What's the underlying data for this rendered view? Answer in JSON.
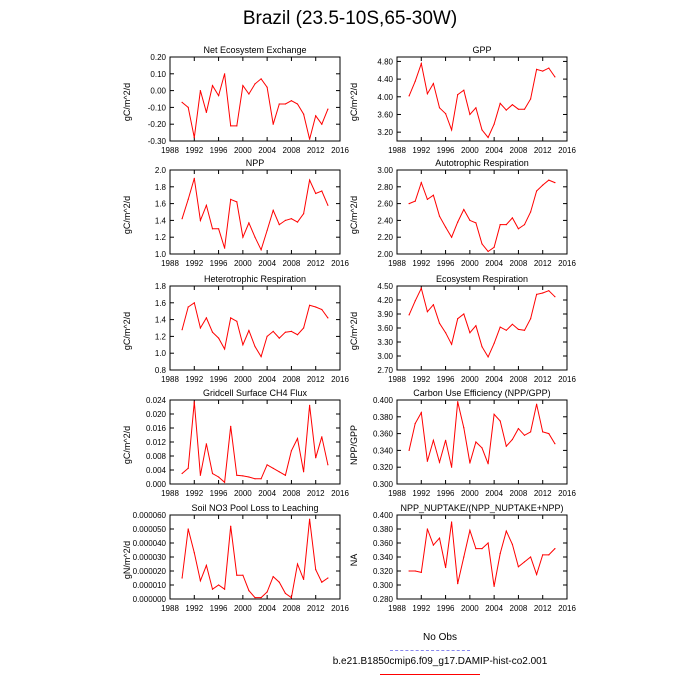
{
  "title": "Brazil (23.5-10S,65-30W)",
  "legend": {
    "items": [
      {
        "label": "No Obs",
        "color": "#8888ee",
        "style": "dashed"
      },
      {
        "label": "b.e21.B1850cmip6.f09_g17.DAMIP-hist-co2.001",
        "color": "#ff0000",
        "style": "solid"
      }
    ]
  },
  "colors": {
    "series": "#ff0000"
  },
  "chart_data": [
    {
      "type": "line",
      "title": "Net Ecosystem Exchange",
      "ylabel": "gC/m^2/d",
      "xlim": [
        1988,
        2016
      ],
      "xticks": [
        1988,
        1992,
        1996,
        2000,
        2004,
        2008,
        2012,
        2016
      ],
      "ylim": [
        -0.3,
        0.2
      ],
      "yticks": [
        -0.3,
        -0.2,
        -0.1,
        0.0,
        0.1,
        0.2
      ],
      "ytick_labels": [
        "-0.30",
        "-0.20",
        "-0.10",
        "0.00",
        "0.10",
        "0.20"
      ],
      "x": [
        1990,
        1991,
        1992,
        1993,
        1994,
        1995,
        1996,
        1997,
        1998,
        1999,
        2000,
        2001,
        2002,
        2003,
        2004,
        2005,
        2006,
        2007,
        2008,
        2009,
        2010,
        2011,
        2012,
        2013,
        2014
      ],
      "values": [
        -0.07,
        -0.1,
        -0.28,
        0.0,
        -0.13,
        0.03,
        -0.03,
        0.1,
        -0.21,
        -0.21,
        0.03,
        -0.02,
        0.04,
        0.07,
        0.02,
        -0.2,
        -0.08,
        -0.08,
        -0.06,
        -0.08,
        -0.14,
        -0.29,
        -0.15,
        -0.2,
        -0.11
      ]
    },
    {
      "type": "line",
      "title": "GPP",
      "ylabel": "gC/m^2/d",
      "xlim": [
        1988,
        2016
      ],
      "xticks": [
        1988,
        1992,
        1996,
        2000,
        2004,
        2008,
        2012,
        2016
      ],
      "ylim": [
        3.0,
        4.9
      ],
      "yticks": [
        3.2,
        3.6,
        4.0,
        4.4,
        4.8
      ],
      "ytick_labels": [
        "3.20",
        "3.60",
        "4.00",
        "4.40",
        "4.80"
      ],
      "x": [
        1990,
        1991,
        1992,
        1993,
        1994,
        1995,
        1996,
        1997,
        1998,
        1999,
        2000,
        2001,
        2002,
        2003,
        2004,
        2005,
        2006,
        2007,
        2008,
        2009,
        2010,
        2011,
        2012,
        2013,
        2014
      ],
      "values": [
        4.02,
        4.35,
        4.75,
        4.07,
        4.3,
        3.75,
        3.62,
        3.25,
        4.05,
        4.15,
        3.6,
        3.75,
        3.25,
        3.08,
        3.38,
        3.85,
        3.7,
        3.82,
        3.72,
        3.72,
        3.95,
        4.62,
        4.58,
        4.65,
        4.45
      ]
    },
    {
      "type": "line",
      "title": "NPP",
      "ylabel": "gC/m^2/d",
      "xlim": [
        1988,
        2016
      ],
      "xticks": [
        1988,
        1992,
        1996,
        2000,
        2004,
        2008,
        2012,
        2016
      ],
      "ylim": [
        1.0,
        2.0
      ],
      "yticks": [
        1.0,
        1.2,
        1.4,
        1.6,
        1.8,
        2.0
      ],
      "ytick_labels": [
        "1.0",
        "1.2",
        "1.4",
        "1.6",
        "1.8",
        "2.0"
      ],
      "x": [
        1990,
        1991,
        1992,
        1993,
        1994,
        1995,
        1996,
        1997,
        1998,
        1999,
        2000,
        2001,
        2002,
        2003,
        2004,
        2005,
        2006,
        2007,
        2008,
        2009,
        2010,
        2011,
        2012,
        2013,
        2014
      ],
      "values": [
        1.42,
        1.65,
        1.9,
        1.4,
        1.58,
        1.3,
        1.3,
        1.07,
        1.65,
        1.62,
        1.2,
        1.37,
        1.2,
        1.05,
        1.28,
        1.52,
        1.35,
        1.4,
        1.42,
        1.38,
        1.48,
        1.88,
        1.72,
        1.75,
        1.58
      ]
    },
    {
      "type": "line",
      "title": "Autotrophic Respiration",
      "ylabel": "gC/m^2/d",
      "xlim": [
        1988,
        2016
      ],
      "xticks": [
        1988,
        1992,
        1996,
        2000,
        2004,
        2008,
        2012,
        2016
      ],
      "ylim": [
        2.0,
        3.0
      ],
      "yticks": [
        2.0,
        2.2,
        2.4,
        2.6,
        2.8,
        3.0
      ],
      "ytick_labels": [
        "2.00",
        "2.20",
        "2.40",
        "2.60",
        "2.80",
        "3.00"
      ],
      "x": [
        1990,
        1991,
        1992,
        1993,
        1994,
        1995,
        1996,
        1997,
        1998,
        1999,
        2000,
        2001,
        2002,
        2003,
        2004,
        2005,
        2006,
        2007,
        2008,
        2009,
        2010,
        2011,
        2012,
        2013,
        2014
      ],
      "values": [
        2.6,
        2.63,
        2.85,
        2.65,
        2.7,
        2.45,
        2.32,
        2.2,
        2.38,
        2.53,
        2.4,
        2.37,
        2.12,
        2.03,
        2.08,
        2.35,
        2.35,
        2.43,
        2.3,
        2.35,
        2.5,
        2.75,
        2.82,
        2.88,
        2.85
      ]
    },
    {
      "type": "line",
      "title": "Heterotrophic Respiration",
      "ylabel": "gC/m^2/d",
      "xlim": [
        1988,
        2016
      ],
      "xticks": [
        1988,
        1992,
        1996,
        2000,
        2004,
        2008,
        2012,
        2016
      ],
      "ylim": [
        0.8,
        1.8
      ],
      "yticks": [
        0.8,
        1.0,
        1.2,
        1.4,
        1.6,
        1.8
      ],
      "ytick_labels": [
        "0.8",
        "1.0",
        "1.2",
        "1.4",
        "1.6",
        "1.8"
      ],
      "x": [
        1990,
        1991,
        1992,
        1993,
        1994,
        1995,
        1996,
        1997,
        1998,
        1999,
        2000,
        2001,
        2002,
        2003,
        2004,
        2005,
        2006,
        2007,
        2008,
        2009,
        2010,
        2011,
        2012,
        2013,
        2014
      ],
      "values": [
        1.28,
        1.55,
        1.6,
        1.3,
        1.42,
        1.25,
        1.18,
        1.05,
        1.42,
        1.38,
        1.1,
        1.27,
        1.08,
        0.96,
        1.2,
        1.26,
        1.18,
        1.25,
        1.26,
        1.22,
        1.3,
        1.57,
        1.55,
        1.52,
        1.42
      ]
    },
    {
      "type": "line",
      "title": "Ecosystem Respiration",
      "ylabel": "gC/m^2/d",
      "xlim": [
        1988,
        2016
      ],
      "xticks": [
        1988,
        1992,
        1996,
        2000,
        2004,
        2008,
        2012,
        2016
      ],
      "ylim": [
        2.7,
        4.5
      ],
      "yticks": [
        2.7,
        3.0,
        3.3,
        3.6,
        3.9,
        4.2,
        4.5
      ],
      "ytick_labels": [
        "2.70",
        "3.00",
        "3.30",
        "3.60",
        "3.90",
        "4.20",
        "4.50"
      ],
      "x": [
        1990,
        1991,
        1992,
        1993,
        1994,
        1995,
        1996,
        1997,
        1998,
        1999,
        2000,
        2001,
        2002,
        2003,
        2004,
        2005,
        2006,
        2007,
        2008,
        2009,
        2010,
        2011,
        2012,
        2013,
        2014
      ],
      "values": [
        3.88,
        4.18,
        4.45,
        3.95,
        4.1,
        3.7,
        3.5,
        3.25,
        3.8,
        3.9,
        3.5,
        3.65,
        3.2,
        2.98,
        3.27,
        3.62,
        3.55,
        3.68,
        3.57,
        3.55,
        3.8,
        4.32,
        4.35,
        4.4,
        4.27
      ]
    },
    {
      "type": "line",
      "title": "Gridcell Surface CH4 Flux",
      "ylabel": "gC/m^2/d",
      "xlim": [
        1988,
        2016
      ],
      "xticks": [
        1988,
        1992,
        1996,
        2000,
        2004,
        2008,
        2012,
        2016
      ],
      "ylim": [
        0.0,
        0.024
      ],
      "yticks": [
        0.0,
        0.004,
        0.008,
        0.012,
        0.016,
        0.02,
        0.024
      ],
      "ytick_labels": [
        "0.000",
        "0.004",
        "0.008",
        "0.012",
        "0.016",
        "0.020",
        "0.024"
      ],
      "x": [
        1990,
        1991,
        1992,
        1993,
        1994,
        1995,
        1996,
        1997,
        1998,
        1999,
        2000,
        2001,
        2002,
        2003,
        2004,
        2005,
        2006,
        2007,
        2008,
        2009,
        2010,
        2011,
        2012,
        2013,
        2014
      ],
      "values": [
        0.003,
        0.0045,
        0.0235,
        0.0025,
        0.0115,
        0.003,
        0.002,
        0.0005,
        0.0165,
        0.0025,
        0.0023,
        0.002,
        0.0015,
        0.0015,
        0.0055,
        0.0045,
        0.0035,
        0.0025,
        0.0095,
        0.013,
        0.0035,
        0.0225,
        0.0075,
        0.0135,
        0.0055
      ]
    },
    {
      "type": "line",
      "title": "Carbon Use Efficiency (NPP/GPP)",
      "ylabel": "NPP/GPP",
      "xlim": [
        1988,
        2016
      ],
      "xticks": [
        1988,
        1992,
        1996,
        2000,
        2004,
        2008,
        2012,
        2016
      ],
      "ylim": [
        0.3,
        0.4
      ],
      "yticks": [
        0.3,
        0.32,
        0.34,
        0.36,
        0.38,
        0.4
      ],
      "ytick_labels": [
        "0.300",
        "0.320",
        "0.340",
        "0.360",
        "0.380",
        "0.400"
      ],
      "x": [
        1990,
        1991,
        1992,
        1993,
        1994,
        1995,
        1996,
        1997,
        1998,
        1999,
        2000,
        2001,
        2002,
        2003,
        2004,
        2005,
        2006,
        2007,
        2008,
        2009,
        2010,
        2011,
        2012,
        2013,
        2014
      ],
      "values": [
        0.34,
        0.372,
        0.385,
        0.327,
        0.352,
        0.326,
        0.352,
        0.32,
        0.398,
        0.367,
        0.325,
        0.35,
        0.343,
        0.324,
        0.383,
        0.375,
        0.345,
        0.353,
        0.366,
        0.358,
        0.362,
        0.395,
        0.362,
        0.36,
        0.348
      ]
    },
    {
      "type": "line",
      "title": "Soil NO3 Pool Loss to Leaching",
      "ylabel": "gN/m^2/d",
      "xlim": [
        1988,
        2016
      ],
      "xticks": [
        1988,
        1992,
        1996,
        2000,
        2004,
        2008,
        2012,
        2016
      ],
      "ylim": [
        0.0,
        6e-05
      ],
      "yticks": [
        0.0,
        1e-05,
        2e-05,
        3e-05,
        4e-05,
        5e-05,
        6e-05
      ],
      "ytick_labels": [
        "0.000000",
        "0.000010",
        "0.000020",
        "0.000030",
        "0.000040",
        "0.000050",
        "0.000060"
      ],
      "x": [
        1990,
        1991,
        1992,
        1993,
        1994,
        1995,
        1996,
        1997,
        1998,
        1999,
        2000,
        2001,
        2002,
        2003,
        2004,
        2005,
        2006,
        2007,
        2008,
        2009,
        2010,
        2011,
        2012,
        2013,
        2014
      ],
      "values": [
        1.5e-05,
        5e-05,
        3.3e-05,
        1.3e-05,
        2.4e-05,
        7e-06,
        1e-05,
        7e-06,
        5.2e-05,
        1.7e-05,
        1.7e-05,
        6e-06,
        1e-06,
        1e-06,
        5e-06,
        1.6e-05,
        1.2e-05,
        4e-06,
        1e-06,
        2.5e-05,
        1.4e-05,
        5.7e-05,
        2.1e-05,
        1.2e-05,
        1.5e-05
      ]
    },
    {
      "type": "line",
      "title": "NPP_NUPTAKE/(NPP_NUPTAKE+NPP)",
      "ylabel": "NA",
      "xlim": [
        1988,
        2016
      ],
      "xticks": [
        1988,
        1992,
        1996,
        2000,
        2004,
        2008,
        2012,
        2016
      ],
      "ylim": [
        0.28,
        0.4
      ],
      "yticks": [
        0.28,
        0.3,
        0.32,
        0.34,
        0.36,
        0.38,
        0.4
      ],
      "ytick_labels": [
        "0.280",
        "0.300",
        "0.320",
        "0.340",
        "0.360",
        "0.380",
        "0.400"
      ],
      "x": [
        1990,
        1991,
        1992,
        1993,
        1994,
        1995,
        1996,
        1997,
        1998,
        1999,
        2000,
        2001,
        2002,
        2003,
        2004,
        2005,
        2006,
        2007,
        2008,
        2009,
        2010,
        2011,
        2012,
        2013,
        2014
      ],
      "values": [
        0.32,
        0.32,
        0.318,
        0.38,
        0.357,
        0.367,
        0.325,
        0.39,
        0.302,
        0.34,
        0.378,
        0.352,
        0.352,
        0.36,
        0.298,
        0.345,
        0.377,
        0.358,
        0.326,
        0.333,
        0.34,
        0.315,
        0.343,
        0.343,
        0.352
      ]
    }
  ]
}
